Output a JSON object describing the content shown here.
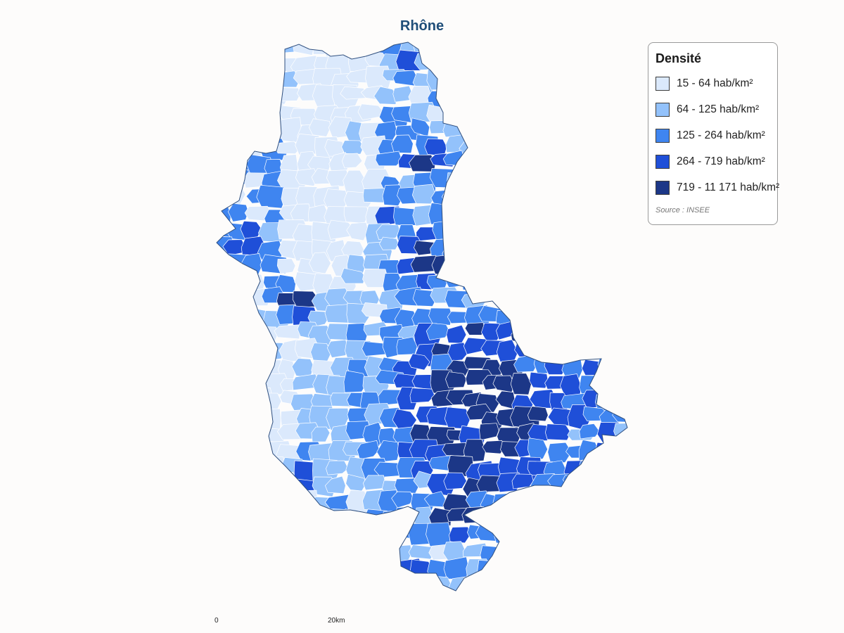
{
  "title": "Rhône",
  "legend": {
    "title": "Densité",
    "classes": [
      {
        "label": "15 - 64 hab/km²",
        "color": "#dbe9fc"
      },
      {
        "label": "64 - 125 hab/km²",
        "color": "#93c2fb"
      },
      {
        "label": "125 - 264 hab/km²",
        "color": "#3f85f0"
      },
      {
        "label": "264 - 719 hab/km²",
        "color": "#1f4fd8"
      },
      {
        "label": "719 - 11 171 hab/km²",
        "color": "#1c3787"
      }
    ],
    "source": "Source : INSEE"
  },
  "scale": {
    "start_label": "0",
    "end_label": "20km"
  },
  "colors": {
    "border": "#2f4f7f",
    "commune_line": "#ffffff"
  }
}
